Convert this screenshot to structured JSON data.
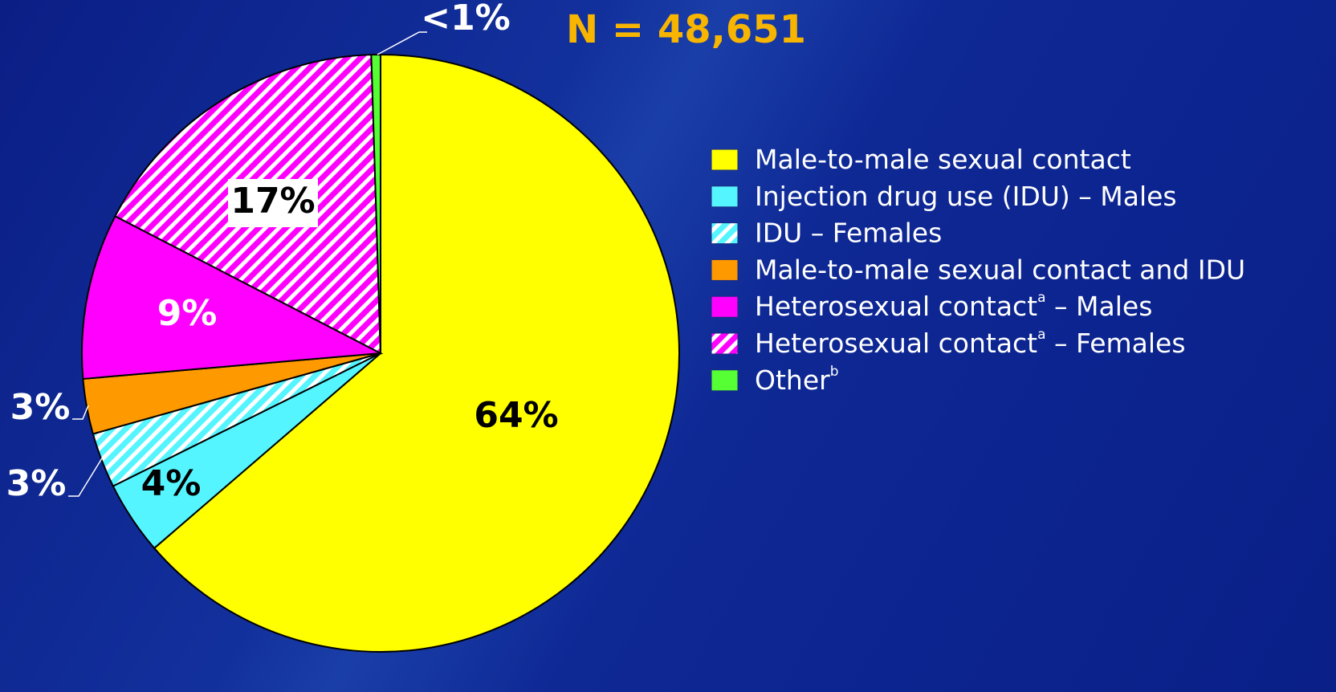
{
  "chart_data": {
    "type": "pie",
    "annotation": "N = 48,651",
    "categories": [
      {
        "text": "Male-to-male sexual contact"
      },
      {
        "text": "Injection drug use (IDU) – Males"
      },
      {
        "text": "IDU – Females"
      },
      {
        "text": "Male-to-male sexual contact and IDU"
      },
      {
        "text": "Heterosexual contact",
        "mark": "a",
        "after": " – Males"
      },
      {
        "text": "Heterosexual contact",
        "mark": "a",
        "after": " – Females"
      },
      {
        "text": "Other",
        "mark": "b"
      }
    ],
    "values": [
      64,
      4,
      3,
      3,
      9,
      17,
      0.5
    ],
    "value_labels": [
      "64%",
      "4%",
      "3%",
      "3%",
      "9%",
      "17%",
      "<1%"
    ],
    "colors": [
      "#ffff00",
      "#55f5ff",
      "#55f5ff",
      "#ff9900",
      "#ff00ff",
      "#ff00ff",
      "#55ff33"
    ],
    "patterns": [
      null,
      null,
      "hatch",
      null,
      null,
      "hatch",
      null
    ],
    "start_angle": 0,
    "direction": "clockwise"
  }
}
